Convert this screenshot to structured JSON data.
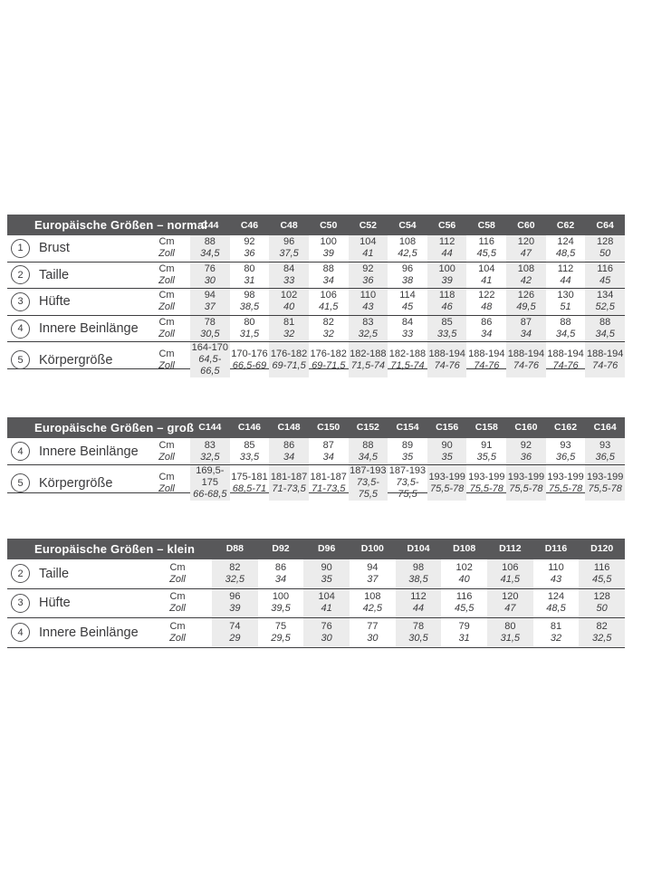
{
  "colors": {
    "header_bg": "#58585a",
    "header_text": "#ffffff",
    "body_text": "#3a3a3c",
    "separator_line": "#3e3e40",
    "zebra_column": "#ececec",
    "page_bg": "#ffffff"
  },
  "units": {
    "cm": "Cm",
    "zoll": "Zoll"
  },
  "tables": [
    {
      "title": "Europäische Größen – normal",
      "columns": [
        "C44",
        "C46",
        "C48",
        "C50",
        "C52",
        "C54",
        "C56",
        "C58",
        "C60",
        "C62",
        "C64"
      ],
      "rows": [
        {
          "num": "1",
          "label": "Brust",
          "cm": [
            "88",
            "92",
            "96",
            "100",
            "104",
            "108",
            "112",
            "116",
            "120",
            "124",
            "128"
          ],
          "zoll": [
            "34,5",
            "36",
            "37,5",
            "39",
            "41",
            "42,5",
            "44",
            "45,5",
            "47",
            "48,5",
            "50"
          ]
        },
        {
          "num": "2",
          "label": "Taille",
          "cm": [
            "76",
            "80",
            "84",
            "88",
            "92",
            "96",
            "100",
            "104",
            "108",
            "112",
            "116"
          ],
          "zoll": [
            "30",
            "31",
            "33",
            "34",
            "36",
            "38",
            "39",
            "41",
            "42",
            "44",
            "45"
          ]
        },
        {
          "num": "3",
          "label": "Hüfte",
          "cm": [
            "94",
            "98",
            "102",
            "106",
            "110",
            "114",
            "118",
            "122",
            "126",
            "130",
            "134"
          ],
          "zoll": [
            "37",
            "38,5",
            "40",
            "41,5",
            "43",
            "45",
            "46",
            "48",
            "49,5",
            "51",
            "52,5"
          ]
        },
        {
          "num": "4",
          "label": "Innere Beinlänge",
          "cm": [
            "78",
            "80",
            "81",
            "82",
            "83",
            "84",
            "85",
            "86",
            "87",
            "88",
            "88"
          ],
          "zoll": [
            "30,5",
            "31,5",
            "32",
            "32",
            "32,5",
            "33",
            "33,5",
            "34",
            "34",
            "34,5",
            "34,5"
          ]
        },
        {
          "num": "5",
          "label": "Körpergröße",
          "cm": [
            "164-170",
            "170-176",
            "176-182",
            "176-182",
            "182-188",
            "182-188",
            "188-194",
            "188-194",
            "188-194",
            "188-194",
            "188-194"
          ],
          "zoll": [
            "64,5-66,5",
            "66,5-69",
            "69-71,5",
            "69-71,5",
            "71,5-74",
            "71,5-74",
            "74-76",
            "74-76",
            "74-76",
            "74-76",
            "74-76"
          ]
        }
      ]
    },
    {
      "title": "Europäische Größen – groß",
      "columns": [
        "C144",
        "C146",
        "C148",
        "C150",
        "C152",
        "C154",
        "C156",
        "C158",
        "C160",
        "C162",
        "C164"
      ],
      "rows": [
        {
          "num": "4",
          "label": "Innere Beinlänge",
          "cm": [
            "83",
            "85",
            "86",
            "87",
            "88",
            "89",
            "90",
            "91",
            "92",
            "93",
            "93"
          ],
          "zoll": [
            "32,5",
            "33,5",
            "34",
            "34",
            "34,5",
            "35",
            "35",
            "35,5",
            "36",
            "36,5",
            "36,5"
          ]
        },
        {
          "num": "5",
          "label": "Körpergröße",
          "cm": [
            "169,5-175",
            "175-181",
            "181-187",
            "181-187",
            "187-193",
            "187-193",
            "193-199",
            "193-199",
            "193-199",
            "193-199",
            "193-199"
          ],
          "zoll": [
            "66-68,5",
            "68,5-71",
            "71-73,5",
            "71-73,5",
            "73,5-75,5",
            "73,5-75,5",
            "75,5-78",
            "75,5-78",
            "75,5-78",
            "75,5-78",
            "75,5-78"
          ]
        }
      ]
    },
    {
      "title": "Europäische Größen – klein",
      "columns": [
        "D88",
        "D92",
        "D96",
        "D100",
        "D104",
        "D108",
        "D112",
        "D116",
        "D120"
      ],
      "rows": [
        {
          "num": "2",
          "label": "Taille",
          "cm": [
            "82",
            "86",
            "90",
            "94",
            "98",
            "102",
            "106",
            "110",
            "116"
          ],
          "zoll": [
            "32,5",
            "34",
            "35",
            "37",
            "38,5",
            "40",
            "41,5",
            "43",
            "45,5"
          ]
        },
        {
          "num": "3",
          "label": "Hüfte",
          "cm": [
            "96",
            "100",
            "104",
            "108",
            "112",
            "116",
            "120",
            "124",
            "128"
          ],
          "zoll": [
            "39",
            "39,5",
            "41",
            "42,5",
            "44",
            "45,5",
            "47",
            "48,5",
            "50"
          ]
        },
        {
          "num": "4",
          "label": "Innere Beinlänge",
          "cm": [
            "74",
            "75",
            "76",
            "77",
            "78",
            "79",
            "80",
            "81",
            "82"
          ],
          "zoll": [
            "29",
            "29,5",
            "30",
            "30",
            "30,5",
            "31",
            "31,5",
            "32",
            "32,5"
          ]
        }
      ]
    }
  ]
}
